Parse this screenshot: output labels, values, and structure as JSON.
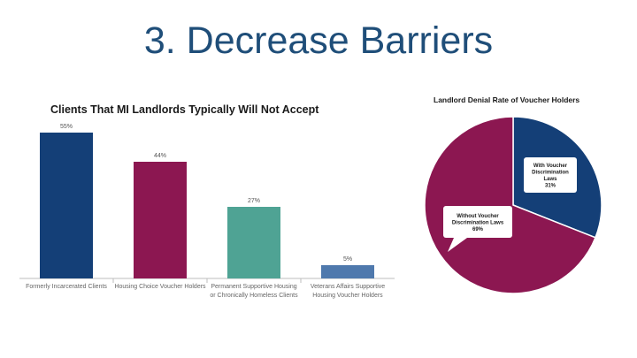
{
  "slide": {
    "title": "3. Decrease Barriers"
  },
  "chart_data": [
    {
      "type": "bar",
      "title": "Clients That MI Landlords Typically Will Not Accept",
      "categories": [
        [
          "Formerly Incarcerated Clients"
        ],
        [
          "Housing Choice Voucher Holders"
        ],
        [
          "Permanent Supportive Housing",
          "or Chronically Homeless Clients"
        ],
        [
          "Veterans Affairs Supportive",
          "Housing Voucher Holders"
        ]
      ],
      "values": [
        55,
        44,
        27,
        5
      ],
      "value_labels": [
        "55%",
        "44%",
        "27%",
        "5%"
      ],
      "colors": [
        "#143f77",
        "#8c1751",
        "#4fa394",
        "#4f79ad"
      ],
      "ylim": [
        0,
        60
      ],
      "grid": false
    },
    {
      "type": "pie",
      "title": "Landlord Denial Rate of Voucher Holders",
      "slices": [
        {
          "label": [
            "With Voucher",
            "Discrimination",
            "Laws"
          ],
          "value": 31,
          "value_label": "31%",
          "color": "#143f77"
        },
        {
          "label": [
            "Without Voucher",
            "Discrimination Laws"
          ],
          "value": 69,
          "value_label": "69%",
          "color": "#8c1751"
        }
      ]
    }
  ]
}
